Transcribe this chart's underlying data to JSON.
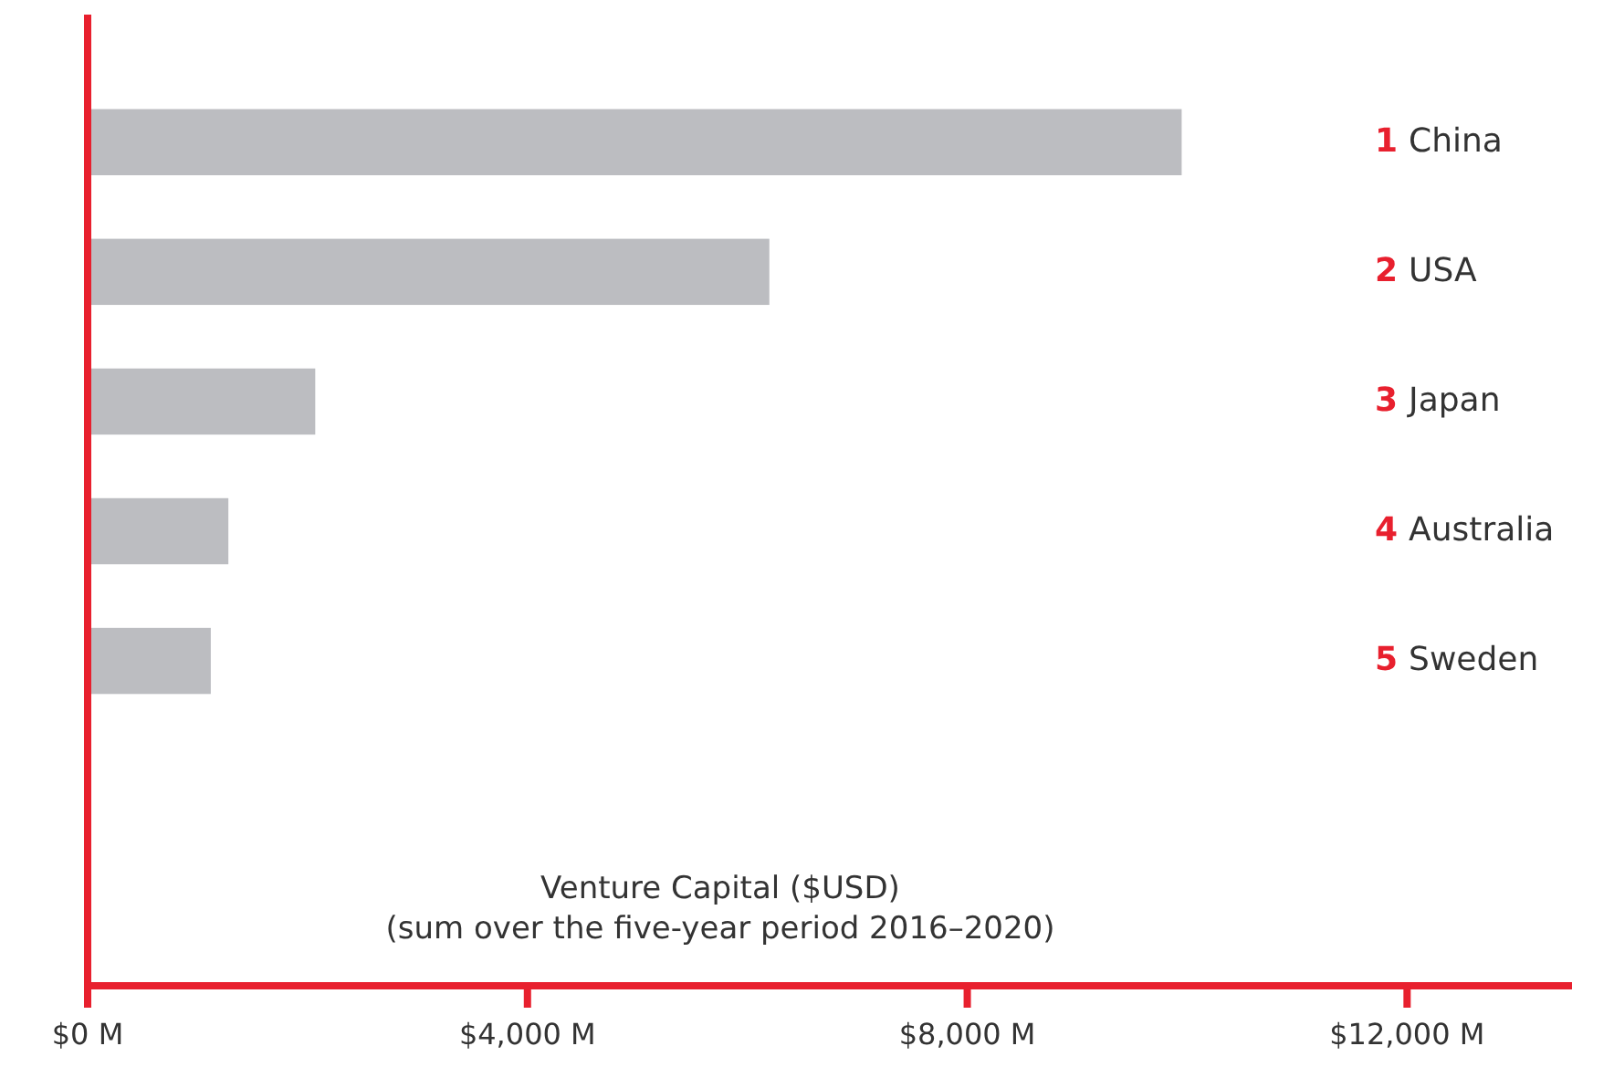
{
  "chart_data": {
    "type": "bar",
    "orientation": "horizontal",
    "xlabel": "Venture Capital ($USD)\n(sum over the five-year period 2016–2020)",
    "categories": [
      "1 China",
      "2 USA",
      "3 Japan",
      "4 Australia",
      "5 Sweden",
      null,
      null
    ],
    "values": [
      9950,
      6200,
      2070,
      1280,
      1120,
      null,
      null
    ],
    "color": "#bcbdc1",
    "xlim": [
      0,
      13500
    ],
    "xticks": [
      {
        "value": 0,
        "label": "$0 M"
      },
      {
        "value": 4000,
        "label": "$4,000 M"
      },
      {
        "value": 8000,
        "label": "$8,000 M"
      },
      {
        "value": 12000,
        "label": "$12,000 M"
      }
    ],
    "grid": false
  }
}
